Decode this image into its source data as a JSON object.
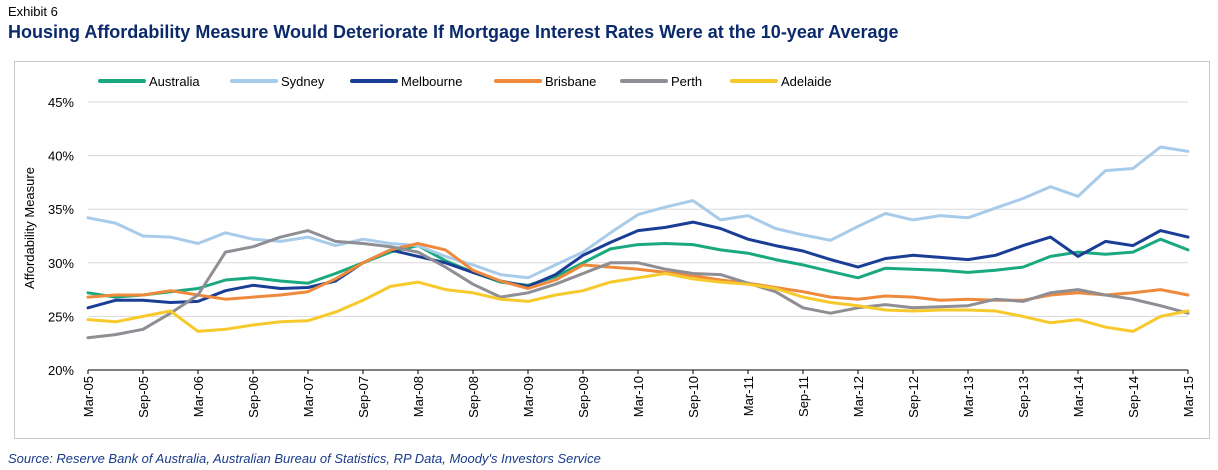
{
  "header": {
    "exhibit": "Exhibit 6",
    "title": "Housing Affordability Measure Would Deteriorate If Mortgage Interest Rates Were at the 10-year Average"
  },
  "source": "Source: Reserve Bank of Australia, Australian Bureau of Statistics, RP Data, Moody's Investors Service",
  "chart_data": {
    "type": "line",
    "title": "",
    "xlabel": "",
    "ylabel": "Affordability Measure",
    "ylim": [
      20,
      45
    ],
    "y_ticks": [
      "20%",
      "25%",
      "30%",
      "35%",
      "40%",
      "45%"
    ],
    "grid": "horizontal",
    "legend_position": "top",
    "x_ticks": [
      "Mar-05",
      "Sep-05",
      "Mar-06",
      "Sep-06",
      "Mar-07",
      "Sep-07",
      "Mar-08",
      "Sep-08",
      "Mar-09",
      "Sep-09",
      "Mar-10",
      "Sep-10",
      "Mar-11",
      "Sep-11",
      "Mar-12",
      "Sep-12",
      "Mar-13",
      "Sep-13",
      "Mar-14",
      "Sep-14",
      "Mar-15"
    ],
    "x": [
      "Mar-05",
      "Jun-05",
      "Sep-05",
      "Dec-05",
      "Mar-06",
      "Jun-06",
      "Sep-06",
      "Dec-06",
      "Mar-07",
      "Jun-07",
      "Sep-07",
      "Dec-07",
      "Mar-08",
      "Jun-08",
      "Sep-08",
      "Dec-08",
      "Mar-09",
      "Jun-09",
      "Sep-09",
      "Dec-09",
      "Mar-10",
      "Jun-10",
      "Sep-10",
      "Dec-10",
      "Mar-11",
      "Jun-11",
      "Sep-11",
      "Dec-11",
      "Mar-12",
      "Jun-12",
      "Sep-12",
      "Dec-12",
      "Mar-13",
      "Jun-13",
      "Sep-13",
      "Dec-13",
      "Mar-14",
      "Jun-14",
      "Sep-14",
      "Dec-14",
      "Mar-15"
    ],
    "series": [
      {
        "name": "Australia",
        "color": "#1aa97f",
        "values": [
          27.2,
          26.8,
          27.0,
          27.3,
          27.6,
          28.4,
          28.6,
          28.3,
          28.1,
          29.0,
          30.0,
          31.0,
          31.6,
          30.2,
          29.1,
          28.2,
          27.9,
          28.7,
          30.0,
          31.3,
          31.7,
          31.8,
          31.7,
          31.2,
          30.9,
          30.3,
          29.8,
          29.2,
          28.6,
          29.5,
          29.4,
          29.3,
          29.1,
          29.3,
          29.6,
          30.6,
          31.0,
          30.8,
          31.0,
          32.2,
          31.2
        ]
      },
      {
        "name": "Sydney",
        "color": "#a8cbea",
        "values": [
          34.2,
          33.7,
          32.5,
          32.4,
          31.8,
          32.8,
          32.2,
          32.0,
          32.4,
          31.6,
          32.2,
          31.8,
          31.6,
          30.6,
          29.8,
          28.9,
          28.6,
          29.8,
          31.0,
          32.8,
          34.5,
          35.2,
          35.8,
          34.0,
          34.4,
          33.2,
          32.6,
          32.1,
          33.4,
          34.6,
          34.0,
          34.4,
          34.2,
          35.1,
          36.0,
          37.1,
          36.2,
          38.6,
          38.8,
          40.8,
          40.4
        ]
      },
      {
        "name": "Melbourne",
        "color": "#1a3d96",
        "values": [
          25.8,
          26.5,
          26.5,
          26.3,
          26.4,
          27.4,
          27.9,
          27.6,
          27.7,
          28.3,
          30.0,
          31.2,
          30.6,
          30.0,
          29.1,
          28.3,
          27.8,
          28.9,
          30.7,
          31.9,
          33.0,
          33.3,
          33.8,
          33.2,
          32.2,
          31.6,
          31.1,
          30.3,
          29.6,
          30.4,
          30.7,
          30.5,
          30.3,
          30.7,
          31.6,
          32.4,
          30.6,
          32.0,
          31.6,
          33.0,
          32.4
        ]
      },
      {
        "name": "Brisbane",
        "color": "#ef8a3c",
        "values": [
          26.8,
          27.0,
          27.0,
          27.4,
          27.0,
          26.6,
          26.8,
          27.0,
          27.3,
          28.5,
          30.0,
          31.2,
          31.8,
          31.2,
          29.3,
          28.3,
          27.6,
          28.4,
          29.8,
          29.6,
          29.4,
          29.1,
          28.8,
          28.4,
          28.1,
          27.7,
          27.3,
          26.8,
          26.6,
          26.9,
          26.8,
          26.5,
          26.6,
          26.5,
          26.5,
          27.0,
          27.2,
          27.0,
          27.2,
          27.5,
          27.0
        ]
      },
      {
        "name": "Perth",
        "color": "#8e8e94",
        "values": [
          23.0,
          23.3,
          23.8,
          25.3,
          27.0,
          31.0,
          31.5,
          32.4,
          33.0,
          32.0,
          31.8,
          31.5,
          31.0,
          29.6,
          28.0,
          26.8,
          27.2,
          28.0,
          29.0,
          30.0,
          30.0,
          29.4,
          29.0,
          28.9,
          28.1,
          27.3,
          25.8,
          25.3,
          25.8,
          26.1,
          25.8,
          25.9,
          26.0,
          26.6,
          26.4,
          27.2,
          27.5,
          27.0,
          26.6,
          26.0,
          25.3
        ]
      },
      {
        "name": "Adelaide",
        "color": "#f7c92b",
        "values": [
          24.7,
          24.5,
          25.0,
          25.5,
          23.6,
          23.8,
          24.2,
          24.5,
          24.6,
          25.4,
          26.5,
          27.8,
          28.2,
          27.5,
          27.2,
          26.6,
          26.4,
          27.0,
          27.4,
          28.2,
          28.6,
          29.0,
          28.5,
          28.2,
          28.0,
          27.6,
          26.8,
          26.3,
          26.0,
          25.6,
          25.5,
          25.6,
          25.6,
          25.5,
          25.0,
          24.4,
          24.7,
          24.0,
          23.6,
          25.0,
          25.5
        ]
      }
    ]
  }
}
